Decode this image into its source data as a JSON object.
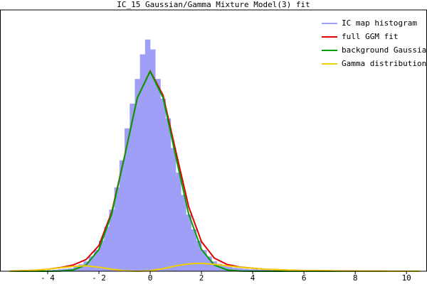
{
  "chart_data": {
    "type": "histogram",
    "title": "IC_15 Gaussian/Gamma Mixture Model(3) fit",
    "name": "IC map histogram",
    "color": "#9f9ff8",
    "bins": [
      -4.0,
      -3.8,
      -3.6,
      -3.4,
      -3.2,
      -3.0,
      -2.8,
      -2.6,
      -2.4,
      -2.2,
      -2.0,
      -1.8,
      -1.6,
      -1.4,
      -1.2,
      -1.0,
      -0.8,
      -0.6,
      -0.4,
      -0.2,
      0.0,
      0.2,
      0.4,
      0.6,
      0.8,
      1.0,
      1.2,
      1.4,
      1.6,
      1.8,
      2.0,
      2.2,
      2.4,
      2.6,
      2.8,
      3.0,
      3.2,
      3.4,
      3.6,
      3.8,
      4.0,
      4.2,
      4.4,
      4.6,
      4.8,
      5.0,
      5.2,
      5.4,
      5.6,
      5.8,
      6.0
    ],
    "values": [
      0.002,
      0.003,
      0.004,
      0.005,
      0.006,
      0.01,
      0.014,
      0.02,
      0.03,
      0.043,
      0.062,
      0.09,
      0.125,
      0.17,
      0.225,
      0.29,
      0.34,
      0.39,
      0.44,
      0.47,
      0.45,
      0.39,
      0.35,
      0.31,
      0.25,
      0.2,
      0.155,
      0.115,
      0.085,
      0.062,
      0.043,
      0.03,
      0.02,
      0.015,
      0.011,
      0.009,
      0.007,
      0.006,
      0.005,
      0.004,
      0.004,
      0.003,
      0.003,
      0.003,
      0.002,
      0.002,
      0.002,
      0.002,
      0.001,
      0.001
    ],
    "series": [
      {
        "name": "full GGM fit",
        "color": "#e00000",
        "x": [
          -5.5,
          -5,
          -4.5,
          -4,
          -3.5,
          -3,
          -2.5,
          -2,
          -1.5,
          -1,
          -0.5,
          0,
          0.5,
          1,
          1.5,
          2,
          2.5,
          3,
          3.5,
          4,
          4.5,
          5,
          5.5,
          6,
          6.5,
          7,
          7.5,
          8,
          8.5,
          9,
          9.5,
          10,
          10.5
        ],
        "values": [
          0,
          0.001,
          0.002,
          0.004,
          0.0075,
          0.0127,
          0.0236,
          0.052,
          0.12,
          0.233,
          0.352,
          0.406,
          0.357,
          0.243,
          0.131,
          0.06,
          0.0266,
          0.0137,
          0.0085,
          0.006,
          0.004,
          0.003,
          0.002,
          0.0015,
          0.001,
          0.0008,
          0.0005,
          0.0003,
          0.0002,
          0.0001,
          0,
          0,
          0
        ]
      },
      {
        "name": "background Gaussian",
        "color": "#00a000",
        "x": [
          -5.5,
          -5,
          -4.5,
          -4,
          -3.5,
          -3,
          -2.5,
          -2,
          -1.5,
          -1,
          -0.5,
          0,
          0.5,
          1,
          1.5,
          2,
          2.5,
          3,
          3.5,
          4,
          4.5,
          5,
          5.5,
          6,
          6.5,
          7,
          7.5,
          8,
          8.5,
          9,
          9.5,
          10,
          10.5
        ],
        "values": [
          0,
          0,
          0,
          0,
          0.0005,
          0.0027,
          0.0126,
          0.044,
          0.116,
          0.232,
          0.352,
          0.405,
          0.352,
          0.232,
          0.116,
          0.044,
          0.0126,
          0.0027,
          0.0005,
          0,
          0,
          0,
          0,
          0,
          0,
          0,
          0,
          0,
          0,
          0,
          0,
          0,
          0
        ]
      },
      {
        "name": "Gamma distributions",
        "color": "#f0d000",
        "x": [
          -5.5,
          -5,
          -4.5,
          -4,
          -3.5,
          -3,
          -2.5,
          -2,
          -1.5,
          -1,
          -0.5,
          0,
          0.5,
          1,
          1.5,
          2,
          2.5,
          3,
          3.5,
          4,
          4.5,
          5,
          5.5,
          6,
          6.5,
          7,
          7.5,
          8,
          8.5,
          9,
          9.5,
          10,
          10.5
        ],
        "values": [
          0,
          0.001,
          0.002,
          0.004,
          0.007,
          0.01,
          0.011,
          0.008,
          0.004,
          0.001,
          0,
          0.001,
          0.005,
          0.011,
          0.015,
          0.016,
          0.014,
          0.011,
          0.008,
          0.006,
          0.004,
          0.003,
          0.002,
          0.0015,
          0.001,
          0.0008,
          0.0005,
          0.0003,
          0.0002,
          0.0001,
          0,
          0,
          0
        ]
      }
    ],
    "xlim": [
      -5.86,
      10.8
    ],
    "ylim": [
      0,
      0.53
    ],
    "xticks": [
      {
        "value": -4,
        "label": "- 4"
      },
      {
        "value": -2,
        "label": "- 2"
      },
      0,
      2,
      4,
      6,
      8,
      10
    ],
    "legend": "upper right"
  }
}
